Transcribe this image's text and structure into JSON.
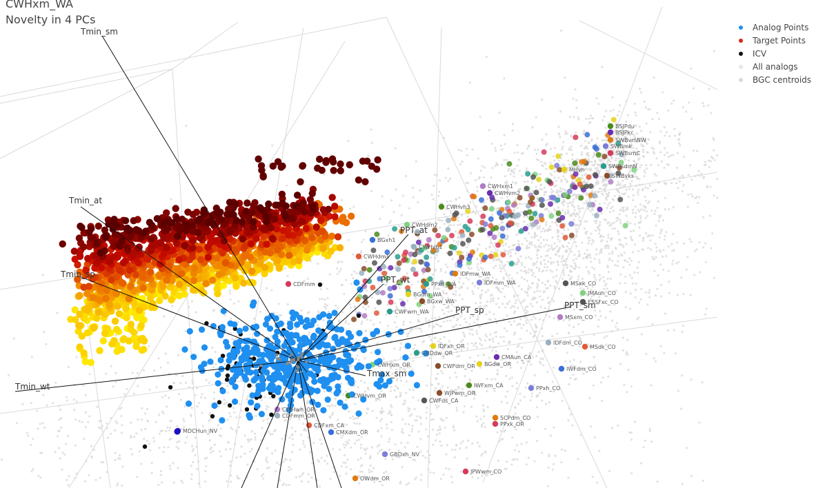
{
  "title": "CWHxm_WA",
  "subtitle": "Novelty in 4 PCs",
  "legend": [
    {
      "label": "Analog Points",
      "color": "#1f8ff0"
    },
    {
      "label": "Target Points",
      "color": "#d62a12"
    },
    {
      "label": "ICV",
      "color": "#111111"
    },
    {
      "label": "All analogs",
      "color": "#dcdcdc"
    },
    {
      "label": "BGC centroids",
      "color": "#cfcfcf"
    }
  ],
  "chart_data": {
    "type": "scatter",
    "projection": "3d perspective",
    "grid": true,
    "legend_position": "top-right",
    "axis_labels": [],
    "variable_vectors": [
      "Tmin_sm",
      "Tmin_at",
      "Tmin_sp",
      "Tmin_wt",
      "PPT_at",
      "PPT_wt",
      "PPT_sp",
      "PPT_sm",
      "Tmax_sm"
    ],
    "centroid_labels": [
      "BSJPdu",
      "BSJPkc",
      "SWBmk",
      "SWBvmNW",
      "SWBsmC",
      "SWBsdmN",
      "MHvh",
      "SWBvks",
      "MSxk_CO",
      "CWHdm2",
      "CWHxm1",
      "CWHvh1",
      "CWHdm1",
      "BGxh1",
      "CWHvh3",
      "CWHvm2",
      "IDFmm_WA",
      "IDFmw_WA",
      "CDFmm",
      "PPxh_WA",
      "BGdm_WA",
      "BGxw_WA",
      "ESSFxc_CO",
      "JMAun_CO",
      "MSxm_CO",
      "IDFdm_CO",
      "MSdk_CO",
      "IWFdm_CO",
      "IWFxm_CA",
      "CMAun_CA",
      "PPxh_CO",
      "SCPdm_CO",
      "PPxk_OR",
      "GBDdw_OR",
      "BGdw_OR",
      "CWFdm_OR",
      "CWFds_CA",
      "CWHxm_OR",
      "CWHwh_OR",
      "CDFmm_OR",
      "CDFxm_CA",
      "CMXdm_OR",
      "CWHvm_OR",
      "MDCHun_NV",
      "GBDxh_NV",
      "OWdm_OR",
      "JPWwm_CO",
      "CWFwm_WA",
      "IDFxh_OR",
      "WJPwm_OR"
    ]
  }
}
